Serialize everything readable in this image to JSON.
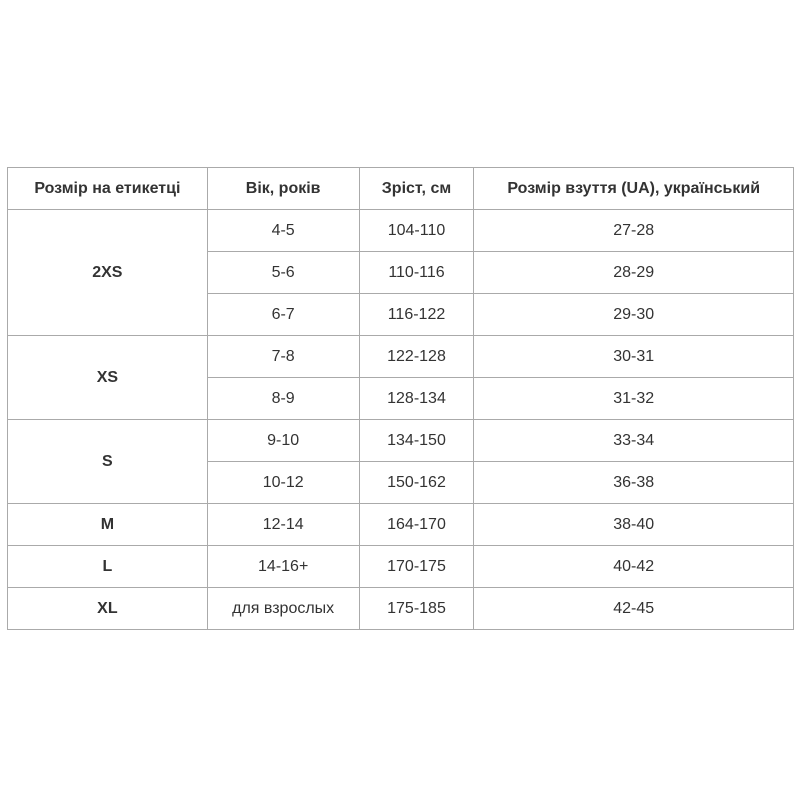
{
  "headers": [
    "Розмір на етикетці",
    "Вік, років",
    "Зріст, см",
    "Розмір взуття (UA), український"
  ],
  "groups": [
    {
      "size": "2XS",
      "rows": [
        [
          "4-5",
          "104-110",
          "27-28"
        ],
        [
          "5-6",
          "110-116",
          "28-29"
        ],
        [
          "6-7",
          "116-122",
          "29-30"
        ]
      ]
    },
    {
      "size": "XS",
      "rows": [
        [
          "7-8",
          "122-128",
          "30-31"
        ],
        [
          "8-9",
          "128-134",
          "31-32"
        ]
      ]
    },
    {
      "size": "S",
      "rows": [
        [
          "9-10",
          "134-150",
          "33-34"
        ],
        [
          "10-12",
          "150-162",
          "36-38"
        ]
      ]
    },
    {
      "size": "M",
      "rows": [
        [
          "12-14",
          "164-170",
          "38-40"
        ]
      ]
    },
    {
      "size": "L",
      "rows": [
        [
          "14-16+",
          "170-175",
          "40-42"
        ]
      ]
    },
    {
      "size": "XL",
      "rows": [
        [
          "для взрослых",
          "175-185",
          "42-45"
        ]
      ]
    }
  ]
}
